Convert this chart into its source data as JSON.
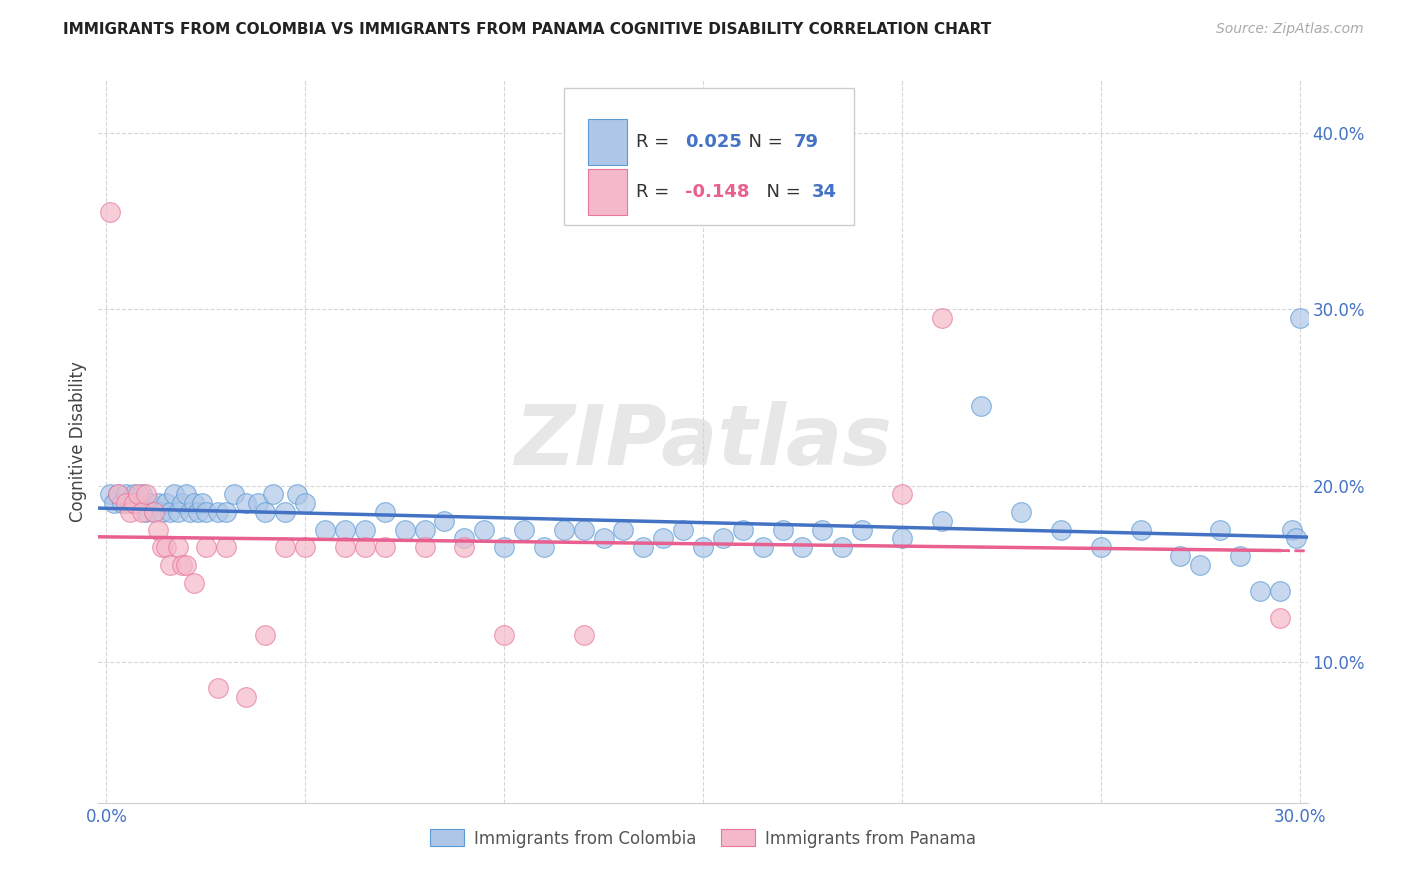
{
  "title": "IMMIGRANTS FROM COLOMBIA VS IMMIGRANTS FROM PANAMA COGNITIVE DISABILITY CORRELATION CHART",
  "source": "Source: ZipAtlas.com",
  "ylabel": "Cognitive Disability",
  "xlabel_colombia": "Immigrants from Colombia",
  "xlabel_panama": "Immigrants from Panama",
  "xlim": [
    -0.002,
    0.302
  ],
  "ylim": [
    0.02,
    0.43
  ],
  "yticks": [
    0.1,
    0.2,
    0.3,
    0.4
  ],
  "xticks": [
    0.0,
    0.05,
    0.1,
    0.15,
    0.2,
    0.25,
    0.3
  ],
  "xtick_labels": [
    "0.0%",
    "",
    "",
    "",
    "",
    "",
    "30.0%"
  ],
  "ytick_labels": [
    "10.0%",
    "20.0%",
    "30.0%",
    "40.0%"
  ],
  "colombia_color": "#aec6e8",
  "panama_color": "#f4b8c8",
  "colombia_edge_color": "#5b9bd5",
  "panama_edge_color": "#e8759a",
  "colombia_line_color": "#4472c4",
  "panama_line_color": "#e86090",
  "R_colombia": 0.025,
  "N_colombia": 79,
  "R_panama": -0.148,
  "N_panama": 34,
  "watermark": "ZIPatlas",
  "legend_text_color": "#333333",
  "legend_value_color": "#4472c4",
  "legend_panama_value_color": "#e86090",
  "colombia_x": [
    0.001,
    0.002,
    0.003,
    0.004,
    0.005,
    0.006,
    0.007,
    0.008,
    0.009,
    0.01,
    0.011,
    0.012,
    0.013,
    0.014,
    0.015,
    0.016,
    0.017,
    0.018,
    0.019,
    0.02,
    0.021,
    0.022,
    0.023,
    0.024,
    0.025,
    0.028,
    0.03,
    0.032,
    0.035,
    0.038,
    0.04,
    0.042,
    0.045,
    0.048,
    0.05,
    0.055,
    0.06,
    0.065,
    0.07,
    0.075,
    0.08,
    0.085,
    0.09,
    0.095,
    0.1,
    0.105,
    0.11,
    0.115,
    0.12,
    0.125,
    0.13,
    0.135,
    0.14,
    0.145,
    0.15,
    0.155,
    0.16,
    0.165,
    0.17,
    0.175,
    0.18,
    0.185,
    0.19,
    0.2,
    0.21,
    0.22,
    0.23,
    0.24,
    0.25,
    0.26,
    0.27,
    0.275,
    0.28,
    0.285,
    0.29,
    0.295,
    0.298,
    0.299,
    0.3
  ],
  "colombia_y": [
    0.195,
    0.19,
    0.195,
    0.19,
    0.195,
    0.19,
    0.195,
    0.19,
    0.195,
    0.185,
    0.19,
    0.185,
    0.19,
    0.185,
    0.19,
    0.185,
    0.195,
    0.185,
    0.19,
    0.195,
    0.185,
    0.19,
    0.185,
    0.19,
    0.185,
    0.185,
    0.185,
    0.195,
    0.19,
    0.19,
    0.185,
    0.195,
    0.185,
    0.195,
    0.19,
    0.175,
    0.175,
    0.175,
    0.185,
    0.175,
    0.175,
    0.18,
    0.17,
    0.175,
    0.165,
    0.175,
    0.165,
    0.175,
    0.175,
    0.17,
    0.175,
    0.165,
    0.17,
    0.175,
    0.165,
    0.17,
    0.175,
    0.165,
    0.175,
    0.165,
    0.175,
    0.165,
    0.175,
    0.17,
    0.18,
    0.245,
    0.185,
    0.175,
    0.165,
    0.175,
    0.16,
    0.155,
    0.175,
    0.16,
    0.14,
    0.14,
    0.175,
    0.17,
    0.295
  ],
  "panama_x": [
    0.001,
    0.003,
    0.005,
    0.006,
    0.007,
    0.008,
    0.009,
    0.01,
    0.012,
    0.013,
    0.014,
    0.015,
    0.016,
    0.018,
    0.019,
    0.02,
    0.022,
    0.025,
    0.028,
    0.03,
    0.035,
    0.04,
    0.045,
    0.05,
    0.06,
    0.065,
    0.07,
    0.08,
    0.09,
    0.1,
    0.12,
    0.2,
    0.21,
    0.295
  ],
  "panama_y": [
    0.355,
    0.195,
    0.19,
    0.185,
    0.19,
    0.195,
    0.185,
    0.195,
    0.185,
    0.175,
    0.165,
    0.165,
    0.155,
    0.165,
    0.155,
    0.155,
    0.145,
    0.165,
    0.085,
    0.165,
    0.08,
    0.115,
    0.165,
    0.165,
    0.165,
    0.165,
    0.165,
    0.165,
    0.165,
    0.115,
    0.115,
    0.195,
    0.295,
    0.125
  ]
}
